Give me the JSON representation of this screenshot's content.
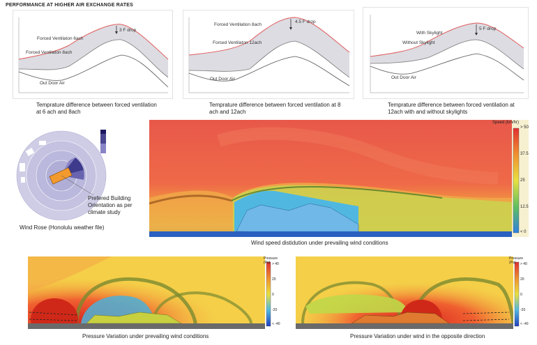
{
  "page_title": "PERFORMANCE AT HIGHER AIR EXCHANGE RATES",
  "graphs": [
    {
      "caption": "Temprature difference between forced ventilation at 6 ach and 8ach",
      "upper_label": "Forced Ventilaton 6ach",
      "lower_label": "Forced Ventilaton 8ach",
      "outdoor_label": "Out Door Air",
      "drop_label": "3 F drop"
    },
    {
      "caption": "Temprature difference between forced ventilation at 8 ach and 12ach",
      "upper_label": "Forced Ventilation 8ach",
      "lower_label": "Forced Ventilaton 12ach",
      "outdoor_label": "Out Door Air",
      "drop_label": "4.5 F drop"
    },
    {
      "caption": "Temprature difference between forced ventilation at 12ach with and without skylights",
      "upper_label": "With Skylight",
      "lower_label": "Without Skylight",
      "outdoor_label": "Out Door Air",
      "drop_label": "5 F drop"
    }
  ],
  "wind_rose": {
    "caption": "Wind Rose (Honolulu weather file)",
    "orientation_note": "Prefered Building Orientation as per climate study"
  },
  "wind_speed": {
    "caption": "Wind speed distidution under prevailing wind conditions",
    "scale_title": "Speed (km/hr)",
    "ticks": [
      "> 50",
      "37.5",
      "25",
      "12.5",
      "< 0"
    ]
  },
  "pressure_left": {
    "caption": "Pressure Variation under prevailing wind conditions",
    "scale_title": "Pressure (Pa)",
    "ticks": [
      "> 40",
      "20",
      "0",
      "-20",
      "< -40"
    ]
  },
  "pressure_right": {
    "caption": "Pressure Variation under wind in the opposite direction",
    "scale_title": "Pressure (Pa)",
    "ticks": [
      "> 40",
      "20",
      "0",
      "-20",
      "< -40"
    ]
  },
  "colors": {
    "hot": "#e8443a",
    "warm": "#f2a13c",
    "neutral": "#e6e85a",
    "cool": "#4aa8e0",
    "rose": "#b8b6dc",
    "band": "#d8d8e0"
  }
}
